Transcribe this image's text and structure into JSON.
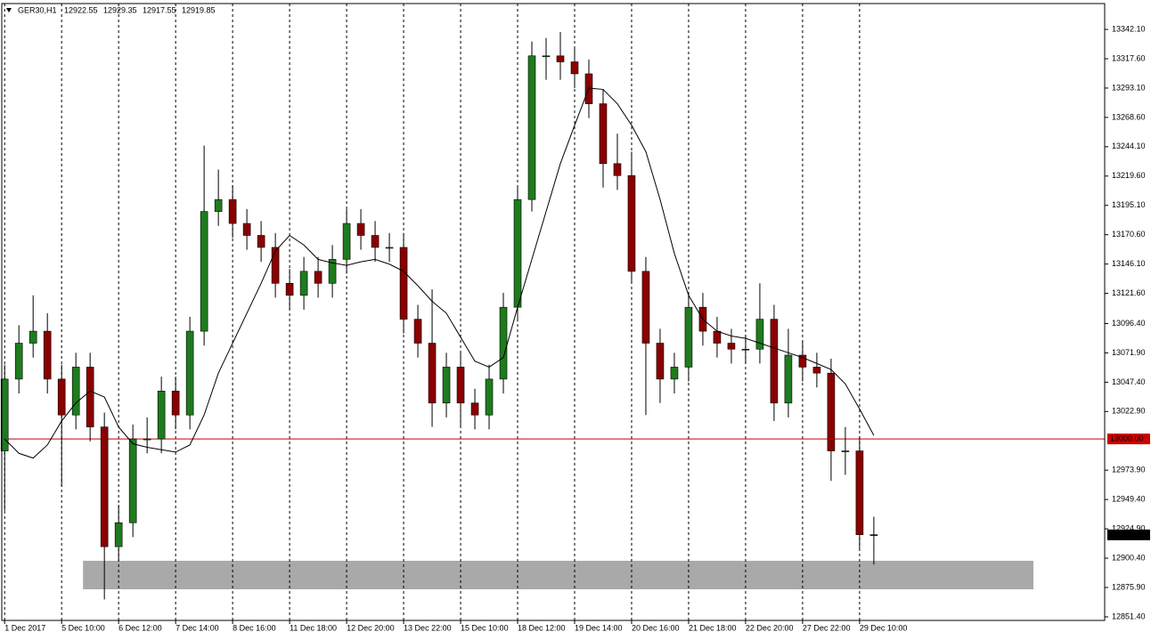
{
  "chart_data": {
    "type": "candlestick",
    "symbol": "GER30,H1",
    "quote": [
      12922.55,
      12929.35,
      12917.55,
      12919.85
    ],
    "last_price": 12919.85,
    "up_color": "#1e7b1e",
    "down_color": "#8b0000",
    "ma_color": "#000000",
    "open": [
      12990,
      13050,
      13080,
      13090,
      13050,
      13020,
      13060,
      13010,
      12910,
      12930,
      13000,
      13000,
      13040,
      13020,
      13090,
      13190,
      13200,
      13180,
      13170,
      13160,
      13130,
      13120,
      13140,
      13130,
      13150,
      13180,
      13170,
      13160,
      13160,
      13100,
      13080,
      13030,
      13060,
      13030,
      13020,
      13050,
      13110,
      13200,
      13320,
      13320,
      13315,
      13305,
      13280,
      13230,
      13220,
      13140,
      13080,
      13050,
      13060,
      13110,
      13090,
      13080,
      13075,
      13075,
      13100,
      13030,
      13070,
      13060,
      13055,
      12990,
      12990,
      12920
    ],
    "high": [
      13062,
      13095,
      13120,
      13105,
      13062,
      13072,
      13072,
      13022,
      12945,
      13012,
      13018,
      13052,
      13052,
      13102,
      13245,
      13225,
      13212,
      13192,
      13182,
      13172,
      13142,
      13152,
      13152,
      13162,
      13192,
      13192,
      13182,
      13172,
      13172,
      13112,
      13125,
      13072,
      13072,
      13042,
      13062,
      13122,
      13212,
      13332,
      13335,
      13340,
      13327,
      13317,
      13292,
      13255,
      13240,
      13152,
      13092,
      13072,
      13122,
      13122,
      13102,
      13092,
      13087,
      13130,
      13112,
      13092,
      13082,
      13072,
      13067,
      13010,
      13002,
      12935
    ],
    "low": [
      12940,
      13038,
      13068,
      13038,
      12960,
      13008,
      12998,
      12866,
      12898,
      12918,
      12988,
      12988,
      13008,
      13008,
      13078,
      13178,
      13168,
      13158,
      13148,
      13118,
      13108,
      13108,
      13118,
      13118,
      13138,
      13158,
      13148,
      13148,
      13088,
      13068,
      13010,
      13018,
      13010,
      13008,
      13008,
      13038,
      13098,
      13190,
      13300,
      13300,
      13293,
      13268,
      13210,
      13208,
      13130,
      13020,
      13030,
      13038,
      13048,
      13078,
      13068,
      13063,
      13063,
      13063,
      13015,
      13018,
      13048,
      13043,
      12965,
      12970,
      12908,
      12895
    ],
    "close": [
      13050,
      13080,
      13090,
      13050,
      13020,
      13060,
      13010,
      12910,
      12930,
      13000,
      13000,
      13040,
      13020,
      13090,
      13190,
      13200,
      13180,
      13170,
      13160,
      13130,
      13120,
      13140,
      13130,
      13150,
      13180,
      13170,
      13160,
      13160,
      13100,
      13080,
      13030,
      13060,
      13030,
      13020,
      13050,
      13110,
      13200,
      13320,
      13320,
      13315,
      13305,
      13280,
      13230,
      13220,
      13140,
      13080,
      13050,
      13060,
      13110,
      13090,
      13080,
      13075,
      13075,
      13100,
      13030,
      13070,
      13060,
      13055,
      12990,
      12990,
      12920,
      12919.85
    ],
    "ma": [
      13000,
      12988,
      12984,
      12995,
      13015,
      13030,
      13040,
      13035,
      13010,
      12996,
      12993,
      12991,
      12989,
      12995,
      13020,
      13055,
      13080,
      13105,
      13130,
      13157,
      13170,
      13162,
      13150,
      13147,
      13145,
      13148,
      13150,
      13146,
      13140,
      13128,
      13115,
      13105,
      13085,
      13065,
      13060,
      13068,
      13110,
      13150,
      13190,
      13230,
      13262,
      13293,
      13292,
      13280,
      13262,
      13240,
      13200,
      13155,
      13120,
      13100,
      13090,
      13086,
      13084,
      13080,
      13076,
      13072,
      13068,
      13063,
      13058,
      13046,
      13025,
      13003
    ],
    "xlim": [
      -0.2,
      77.2
    ],
    "ylim": [
      12848.4,
      13363.7
    ],
    "xticks": [
      {
        "value": 0,
        "label": "1 Dec 2017"
      },
      {
        "value": 4,
        "label": "5 Dec 10:00"
      },
      {
        "value": 8,
        "label": "6 Dec 12:00"
      },
      {
        "value": 12,
        "label": "7 Dec 14:00"
      },
      {
        "value": 16,
        "label": "8 Dec 16:00"
      },
      {
        "value": 20,
        "label": "11 Dec 18:00"
      },
      {
        "value": 24,
        "label": "12 Dec 20:00"
      },
      {
        "value": 28,
        "label": "13 Dec 22:00"
      },
      {
        "value": 32,
        "label": "15 Dec 10:00"
      },
      {
        "value": 36,
        "label": "18 Dec 12:00"
      },
      {
        "value": 40,
        "label": "19 Dec 14:00"
      },
      {
        "value": 44,
        "label": "20 Dec 16:00"
      },
      {
        "value": 48,
        "label": "21 Dec 18:00"
      },
      {
        "value": 52,
        "label": "22 Dec 20:00"
      },
      {
        "value": 56,
        "label": "27 Dec 22:00"
      },
      {
        "value": 60,
        "label": "29 Dec 10:00"
      }
    ],
    "yticks": [
      {
        "value": 13342.1,
        "label": "13342.10"
      },
      {
        "value": 13317.6,
        "label": "13317.60"
      },
      {
        "value": 13293.1,
        "label": "13293.10"
      },
      {
        "value": 13268.6,
        "label": "13268.60"
      },
      {
        "value": 13244.1,
        "label": "13244.10"
      },
      {
        "value": 13219.6,
        "label": "13219.60"
      },
      {
        "value": 13195.1,
        "label": "13195.10"
      },
      {
        "value": 13170.6,
        "label": "13170.60"
      },
      {
        "value": 13146.1,
        "label": "13146.10"
      },
      {
        "value": 13121.6,
        "label": "13121.60"
      },
      {
        "value": 13096.4,
        "label": "13096.40"
      },
      {
        "value": 13071.9,
        "label": "13071.90"
      },
      {
        "value": 13047.4,
        "label": "13047.40"
      },
      {
        "value": 13022.9,
        "label": "13022.90"
      },
      {
        "value": 12973.9,
        "label": "12973.90"
      },
      {
        "value": 12949.4,
        "label": "12949.40"
      },
      {
        "value": 12924.9,
        "label": "12924.90"
      },
      {
        "value": 12900.4,
        "label": "12900.40"
      },
      {
        "value": 12875.9,
        "label": "12875.90"
      },
      {
        "value": 12851.4,
        "label": "12851.40"
      }
    ],
    "level": {
      "value": 13000,
      "label": "13000.00",
      "color": "#cc0000"
    },
    "zone": {
      "xlim": [
        5.5,
        72.2
      ],
      "ylim": [
        12874.4,
        12898.2
      ],
      "color": "#a9a9a9"
    },
    "grid": true
  }
}
